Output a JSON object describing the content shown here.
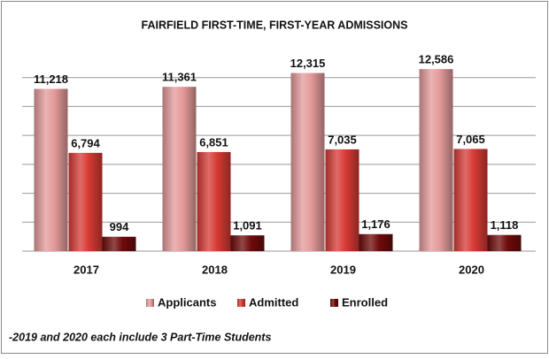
{
  "chart_data": {
    "type": "bar",
    "title": "FAIRFIELD FIRST-TIME, FIRST-YEAR ADMISSIONS",
    "categories": [
      "2017",
      "2018",
      "2019",
      "2020"
    ],
    "series": [
      {
        "name": "Applicants",
        "color": "#e49a9a",
        "values": [
          11218,
          11361,
          12315,
          12586
        ],
        "value_labels": [
          "11,218",
          "11,361",
          "12,315",
          "12,586"
        ]
      },
      {
        "name": "Admitted",
        "color": "#d63a34",
        "values": [
          6794,
          6851,
          7035,
          7065
        ],
        "value_labels": [
          "6,794",
          "6,851",
          "7,035",
          "7,065"
        ]
      },
      {
        "name": "Enrolled",
        "color": "#6e0a0a",
        "values": [
          994,
          1091,
          1176,
          1118
        ],
        "value_labels": [
          "994",
          "1,091",
          "1,176",
          "1,118"
        ]
      }
    ],
    "ylim": [
      0,
      14000
    ],
    "yticks": [
      0,
      2000,
      4000,
      6000,
      8000,
      10000,
      12000
    ],
    "grid": true,
    "legend": "bottom",
    "note": "-2019 and 2020 each include 3 Part-Time Students"
  }
}
